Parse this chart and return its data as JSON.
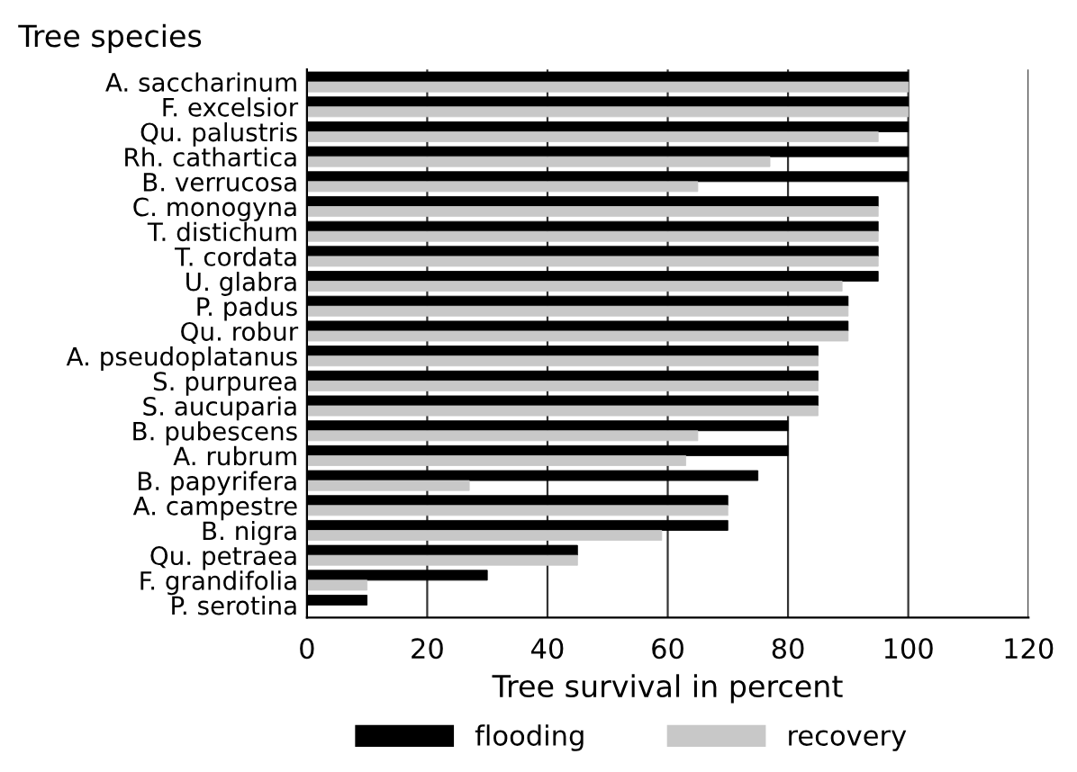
{
  "chart_data": {
    "type": "bar",
    "orientation": "horizontal",
    "ylabel": "Tree species",
    "xlabel": "Tree survival in percent",
    "categories": [
      "A. saccharinum",
      "F. excelsior",
      "Qu. palustris",
      "Rh. cathartica",
      "B. verrucosa",
      "C. monogyna",
      "T. distichum",
      "T. cordata",
      "U. glabra",
      "P. padus",
      "Qu. robur",
      "A. pseudoplatanus",
      "S. purpurea",
      "S. aucuparia",
      "B. pubescens",
      "A. rubrum",
      "B. papyrifera",
      "A. campestre",
      "B. nigra",
      "Qu. petraea",
      "F. grandifolia",
      "P. serotina"
    ],
    "series": [
      {
        "name": "flooding",
        "color": "#000000",
        "values": [
          100,
          100,
          100,
          100,
          100,
          95,
          95,
          95,
          95,
          90,
          90,
          85,
          85,
          85,
          80,
          80,
          75,
          70,
          70,
          45,
          30,
          10
        ]
      },
      {
        "name": "recovery",
        "color": "#c8c8c8",
        "values": [
          100,
          100,
          95,
          77,
          65,
          95,
          95,
          95,
          89,
          90,
          90,
          85,
          85,
          85,
          65,
          63,
          27,
          70,
          59,
          45,
          10,
          null
        ]
      }
    ],
    "xlim": [
      0,
      120
    ],
    "xticks": [
      0,
      20,
      40,
      60,
      80,
      100,
      120
    ],
    "grid": "x",
    "legend": "bottom"
  }
}
